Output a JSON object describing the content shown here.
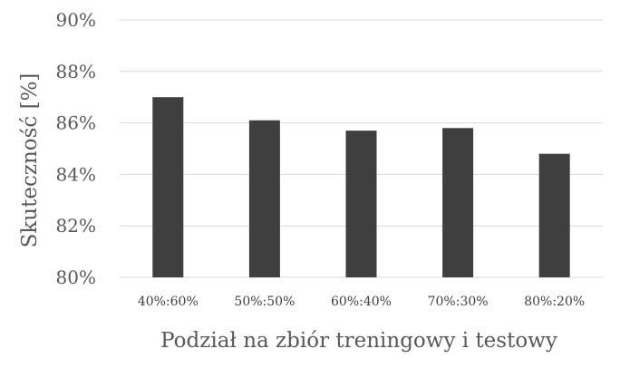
{
  "chart_data": {
    "type": "bar",
    "categories": [
      "40%:60%",
      "50%:50%",
      "60%:40%",
      "70%:30%",
      "80%:20%"
    ],
    "values": [
      87.0,
      86.1,
      85.7,
      85.8,
      84.8
    ],
    "xlabel": "Podział na zbiór treningowy i testowy",
    "ylabel": "Skuteczność [%]",
    "ylim": [
      80,
      90
    ],
    "yticks": [
      80,
      82,
      84,
      86,
      88,
      90
    ],
    "ytick_labels": [
      "80%",
      "82%",
      "84%",
      "86%",
      "88%",
      "90%"
    ],
    "grid": "horizontal",
    "legend": "none",
    "bar_color": "#3f3f3f",
    "grid_color": "#d9d9d9"
  }
}
